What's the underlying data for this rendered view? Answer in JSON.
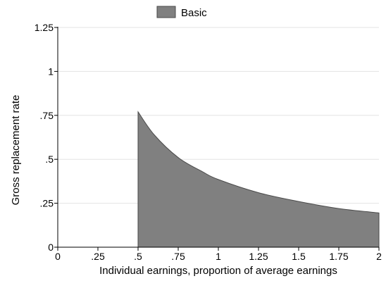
{
  "chart_data": {
    "type": "area",
    "title": "",
    "xlabel": "Individual earnings, proportion of average earnings",
    "ylabel": "Gross replacement rate",
    "xlim": [
      0,
      2
    ],
    "ylim": [
      0,
      1.25
    ],
    "x_ticks": [
      {
        "value": 0,
        "label": "0"
      },
      {
        "value": 0.25,
        "label": ".25"
      },
      {
        "value": 0.5,
        "label": ".5"
      },
      {
        "value": 0.75,
        "label": ".75"
      },
      {
        "value": 1,
        "label": "1"
      },
      {
        "value": 1.25,
        "label": "1.25"
      },
      {
        "value": 1.5,
        "label": "1.5"
      },
      {
        "value": 1.75,
        "label": "1.75"
      },
      {
        "value": 2,
        "label": "2"
      }
    ],
    "y_ticks": [
      {
        "value": 0,
        "label": "0"
      },
      {
        "value": 0.25,
        "label": ".25"
      },
      {
        "value": 0.5,
        "label": ".5"
      },
      {
        "value": 0.75,
        "label": ".75"
      },
      {
        "value": 1,
        "label": "1"
      },
      {
        "value": 1.25,
        "label": "1.25"
      }
    ],
    "grid": true,
    "legend_position": "top",
    "series": [
      {
        "name": "Basic",
        "color": "#808080",
        "x": [
          0.5,
          0.6,
          0.75,
          0.9,
          1.0,
          1.25,
          1.5,
          1.75,
          2.0
        ],
        "values": [
          0.77,
          0.64,
          0.51,
          0.43,
          0.385,
          0.31,
          0.26,
          0.22,
          0.195
        ]
      }
    ]
  }
}
